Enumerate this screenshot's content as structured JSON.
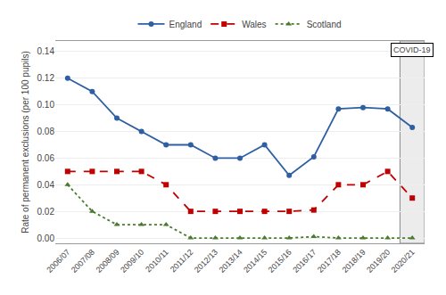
{
  "chart_data": {
    "type": "line",
    "categories": [
      "2006/07",
      "2007/08",
      "2008/09",
      "2009/10",
      "2010/11",
      "2011/12",
      "2012/13",
      "2013/14",
      "2014/15",
      "2015/16",
      "2016/17",
      "2017/18",
      "2018/19",
      "2019/20",
      "2020/21"
    ],
    "series": [
      {
        "name": "England",
        "color": "#2e5fa3",
        "marker": "circle",
        "line_style": "solid",
        "values": [
          0.12,
          0.11,
          0.09,
          0.08,
          0.07,
          0.07,
          0.06,
          0.06,
          0.07,
          0.047,
          0.061,
          0.097,
          0.098,
          0.097,
          0.083
        ]
      },
      {
        "name": "Wales",
        "color": "#c00000",
        "marker": "square",
        "line_style": "dash",
        "values": [
          0.05,
          0.05,
          0.05,
          0.05,
          0.04,
          0.02,
          0.02,
          0.02,
          0.02,
          0.02,
          0.021,
          0.04,
          0.04,
          0.05,
          0.03
        ]
      },
      {
        "name": "Scotland",
        "color": "#4a7a2e",
        "marker": "triangle-up",
        "line_style": "dot",
        "values": [
          0.04,
          0.02,
          0.01,
          0.01,
          0.01,
          0.0,
          0.0,
          0.0,
          0.0,
          0.0,
          0.001,
          0.0,
          0.0,
          0.0,
          0.0
        ]
      }
    ],
    "ylabel": "Rate of permanent exclusions (per 100 pupils)",
    "ylim": [
      -0.004,
      0.148
    ],
    "yticks": [
      {
        "value": 0.0,
        "label": "0.00"
      },
      0.02,
      0.04,
      0.06,
      0.08,
      {
        "value": 0.1,
        "label": "0.10"
      },
      0.12,
      0.14
    ],
    "annotations": [
      {
        "text": "COVID-19",
        "x": "2020/21"
      }
    ],
    "grid": true,
    "legend": "top"
  }
}
